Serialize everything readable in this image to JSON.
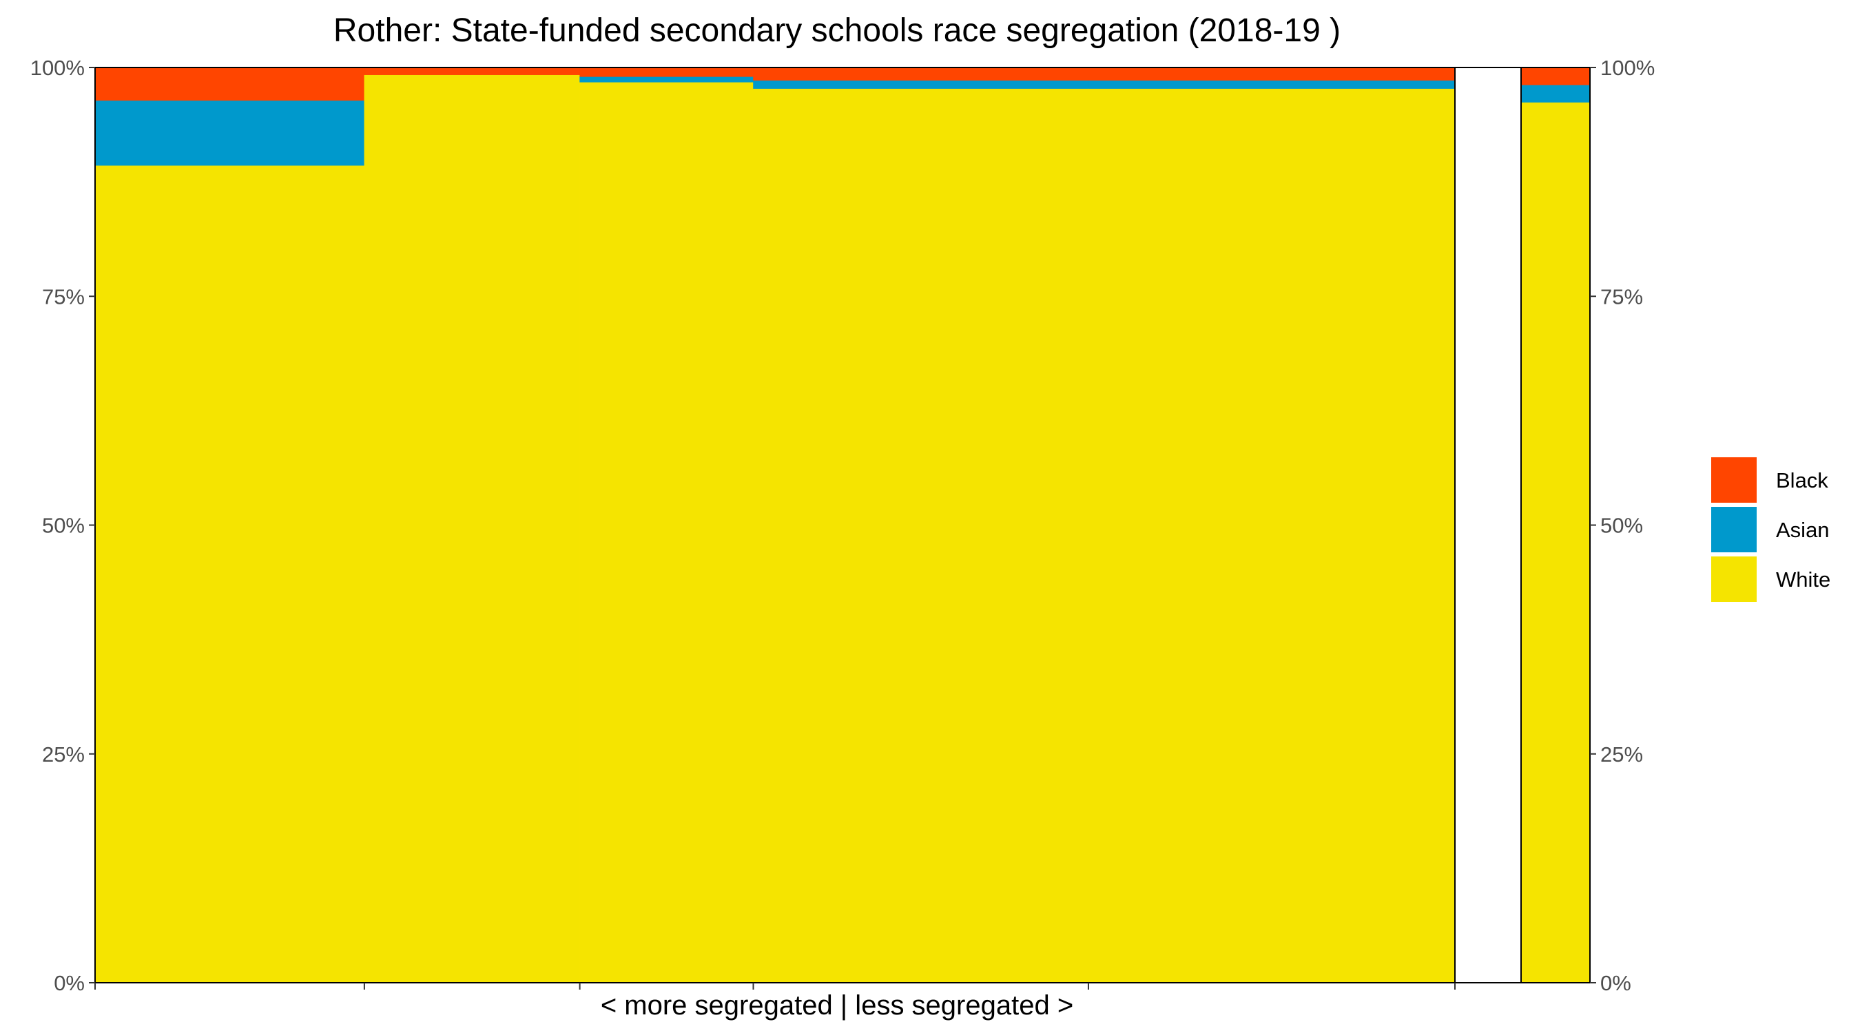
{
  "chart_data": {
    "type": "bar",
    "subtype": "stacked-proportional-mosaic",
    "title": "Rother: State-funded secondary schools race segregation (2018-19 )",
    "xlabel": "< more segregated | less segregated >",
    "ylabel": "",
    "ylim": [
      0,
      1
    ],
    "y_tick_labels": [
      "0%",
      "25%",
      "50%",
      "75%",
      "100%"
    ],
    "y_axis_both_sides": true,
    "grid": false,
    "legend_position": "right",
    "series_order": [
      "White",
      "Asian",
      "Black"
    ],
    "legend_order": [
      "Black",
      "Asian",
      "White"
    ],
    "colors": {
      "White": "#F5E400",
      "Asian": "#0099CC",
      "Black": "#FF4500"
    },
    "schools": [
      {
        "width": 0.18,
        "values": {
          "White": 0.893,
          "Asian": 0.071,
          "Black": 0.036
        }
      },
      {
        "width": 0.144,
        "values": {
          "White": 0.992,
          "Asian": 0.0,
          "Black": 0.008
        }
      },
      {
        "width": 0.116,
        "values": {
          "White": 0.984,
          "Asian": 0.006,
          "Black": 0.01
        }
      },
      {
        "width": 0.224,
        "values": {
          "White": 0.977,
          "Asian": 0.009,
          "Black": 0.014
        }
      },
      {
        "width": 0.245,
        "values": {
          "White": 0.977,
          "Asian": 0.009,
          "Black": 0.014
        }
      }
    ],
    "total": {
      "width": 0.045,
      "values": {
        "White": 0.962,
        "Asian": 0.019,
        "Black": 0.019
      }
    }
  }
}
